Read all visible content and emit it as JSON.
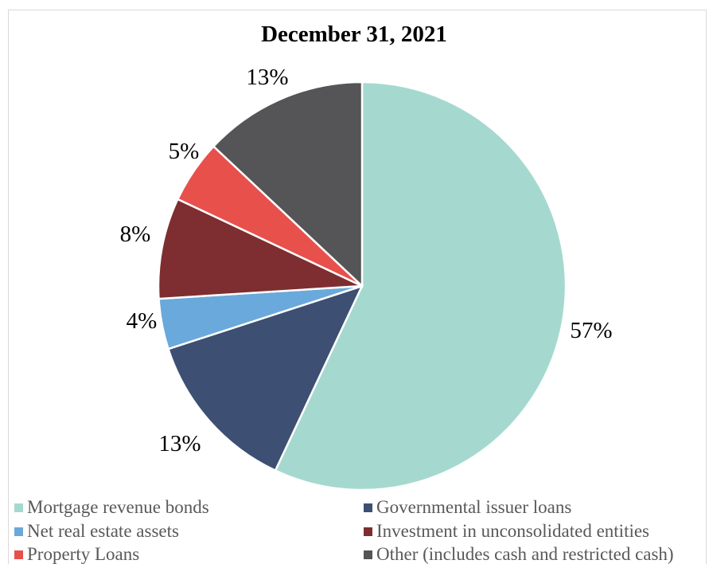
{
  "chart_data": {
    "type": "pie",
    "title": "December 31, 2021",
    "categories": [
      "Mortgage revenue bonds",
      "Governmental issuer loans",
      "Net real estate assets",
      "Investment in unconsolidated entities",
      "Property Loans",
      "Other (includes cash and restricted cash)"
    ],
    "values": [
      57,
      13,
      4,
      8,
      5,
      13
    ],
    "labels": [
      "57%",
      "13%",
      "4%",
      "8%",
      "5%",
      "13%"
    ],
    "colors": [
      "#a5d9cf",
      "#3d4f72",
      "#6aa9db",
      "#7e2e30",
      "#e8504c",
      "#555558"
    ],
    "legend_position": "bottom",
    "start_angle": "12 o'clock",
    "direction": "clockwise"
  }
}
